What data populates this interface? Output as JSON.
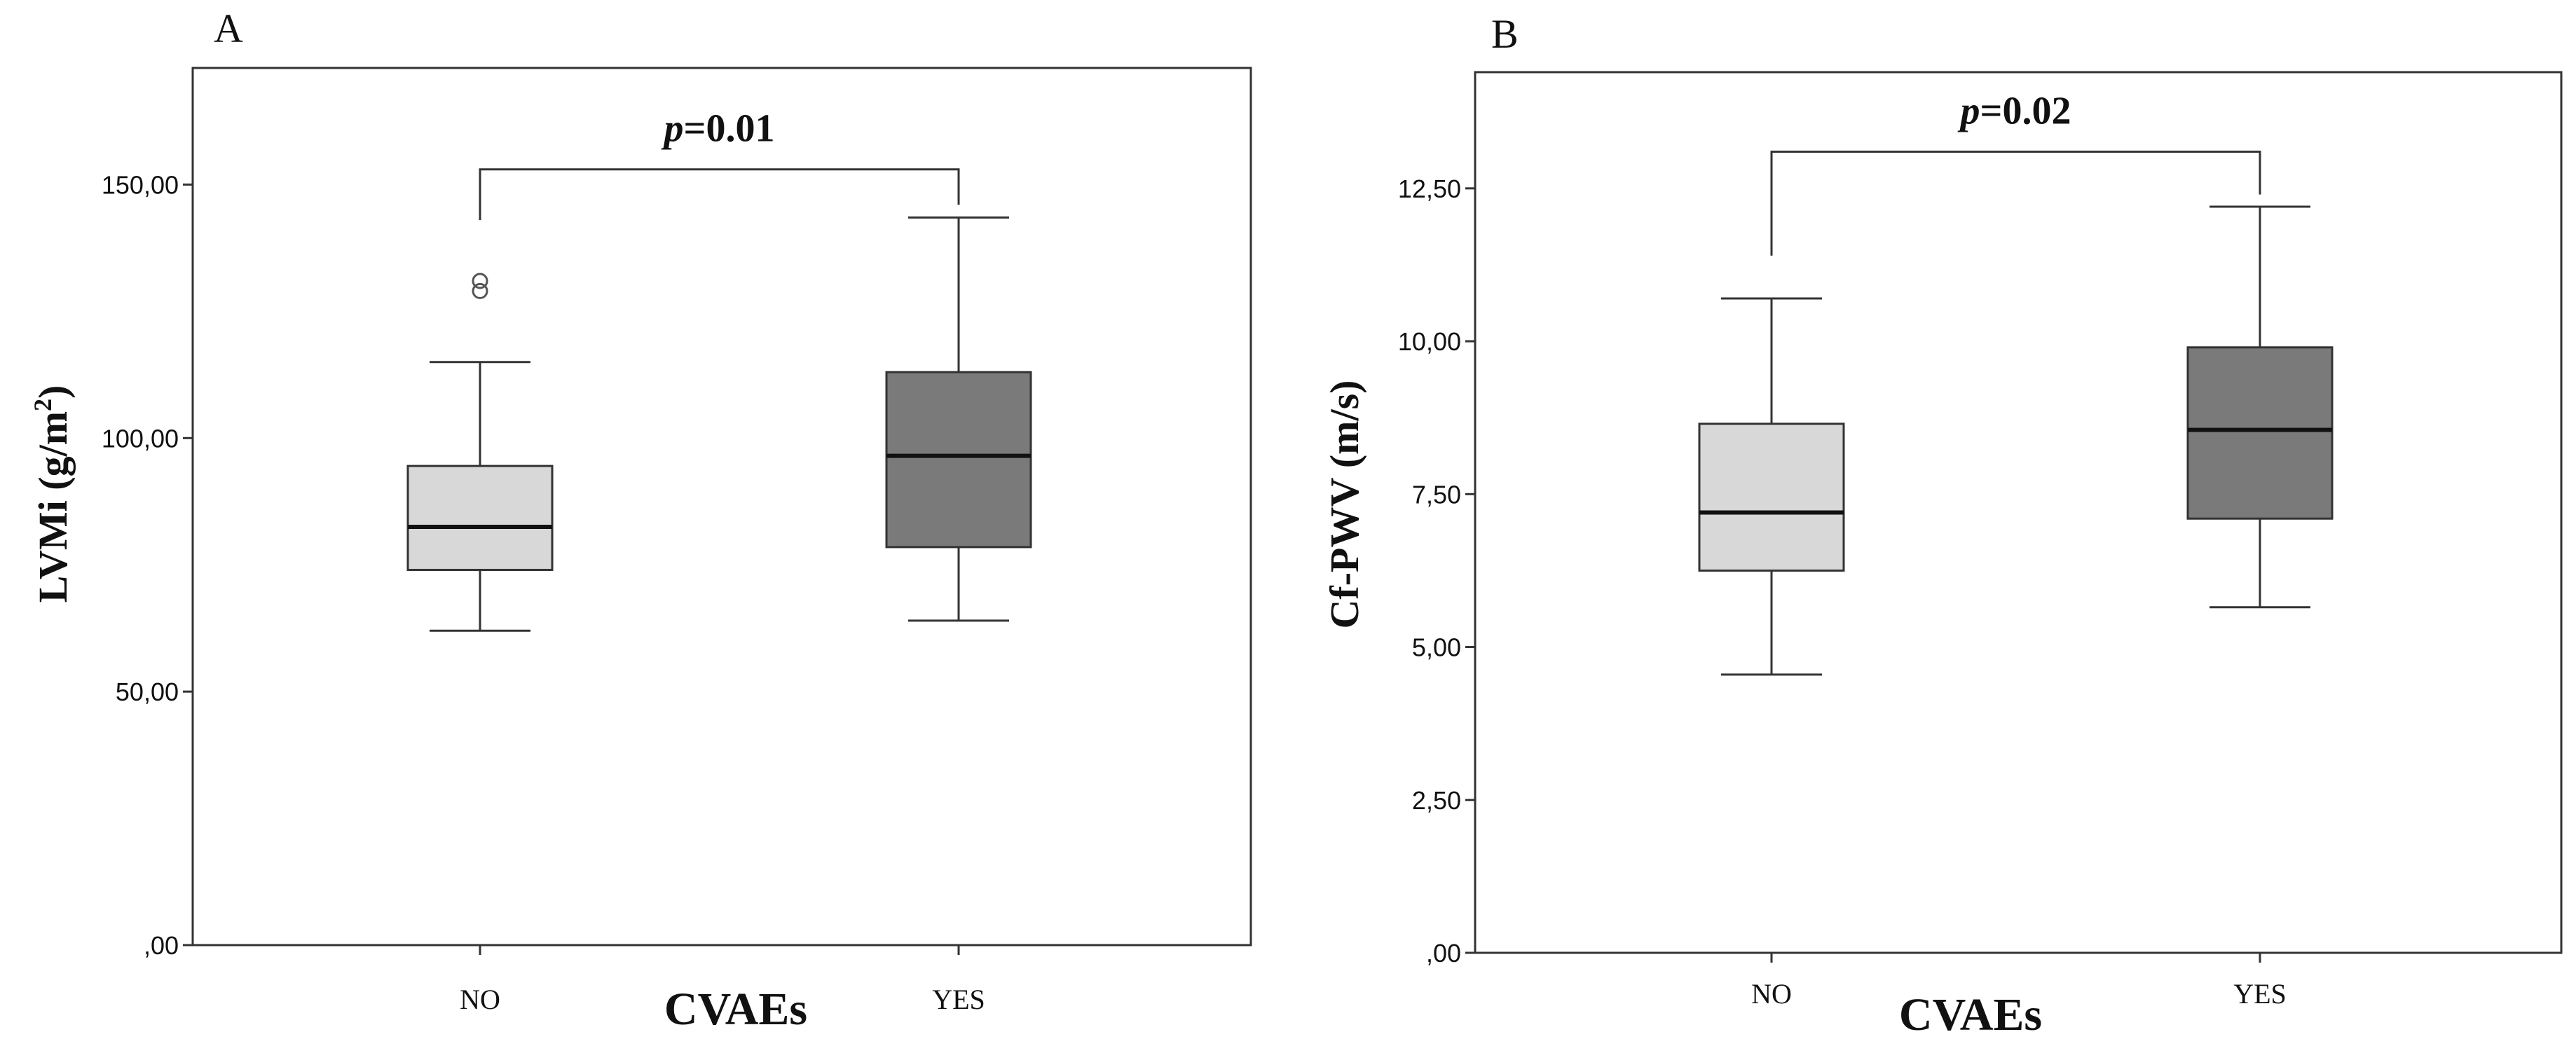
{
  "colors": {
    "box_no": "#d8d8d8",
    "box_yes": "#7a7a7a",
    "line": "#333333",
    "text": "#111111"
  },
  "chart_data": [
    {
      "type": "boxplot",
      "panel_label": "A",
      "title": "",
      "xlabel": "CVAEs",
      "ylabel": "LVMi (g/m",
      "ylabel_superscript": "2",
      "ylabel_close": ")",
      "ylim": [
        0,
        173
      ],
      "yticks": [
        0,
        50,
        100,
        150
      ],
      "ytick_labels": [
        ",00",
        "50,00",
        "100,00",
        "150,00"
      ],
      "categories": [
        "NO",
        "YES"
      ],
      "boxes": [
        {
          "category": "NO",
          "whisker_low": 62,
          "q1": 74,
          "median": 82.5,
          "q3": 94.5,
          "whisker_high": 115,
          "outliers": [
            129,
            131
          ]
        },
        {
          "category": "YES",
          "whisker_low": 64,
          "q1": 78.5,
          "median": 96.5,
          "q3": 113,
          "whisker_high": 143.5,
          "outliers": []
        }
      ],
      "annotation": {
        "p_symbol": "p",
        "p_text": "=0.01",
        "bracket_y": 153,
        "left_end": 143,
        "right_end": 146
      }
    },
    {
      "type": "boxplot",
      "panel_label": "B",
      "title": "",
      "xlabel": "CVAEs",
      "ylabel": "Cf-PWV (m/s)",
      "ylim": [
        0,
        14.4
      ],
      "yticks": [
        0,
        2.5,
        5,
        7.5,
        10,
        12.5
      ],
      "ytick_labels": [
        ",00",
        "2,50",
        "5,00",
        "7,50",
        "10,00",
        "12,50"
      ],
      "categories": [
        "NO",
        "YES"
      ],
      "boxes": [
        {
          "category": "NO",
          "whisker_low": 4.55,
          "q1": 6.25,
          "median": 7.2,
          "q3": 8.65,
          "whisker_high": 10.7,
          "outliers": []
        },
        {
          "category": "YES",
          "whisker_low": 5.65,
          "q1": 7.1,
          "median": 8.55,
          "q3": 9.9,
          "whisker_high": 12.2,
          "outliers": []
        }
      ],
      "annotation": {
        "p_symbol": "p",
        "p_text": "=0.02",
        "bracket_y": 13.1,
        "left_end": 11.4,
        "right_end": 12.4
      }
    }
  ]
}
